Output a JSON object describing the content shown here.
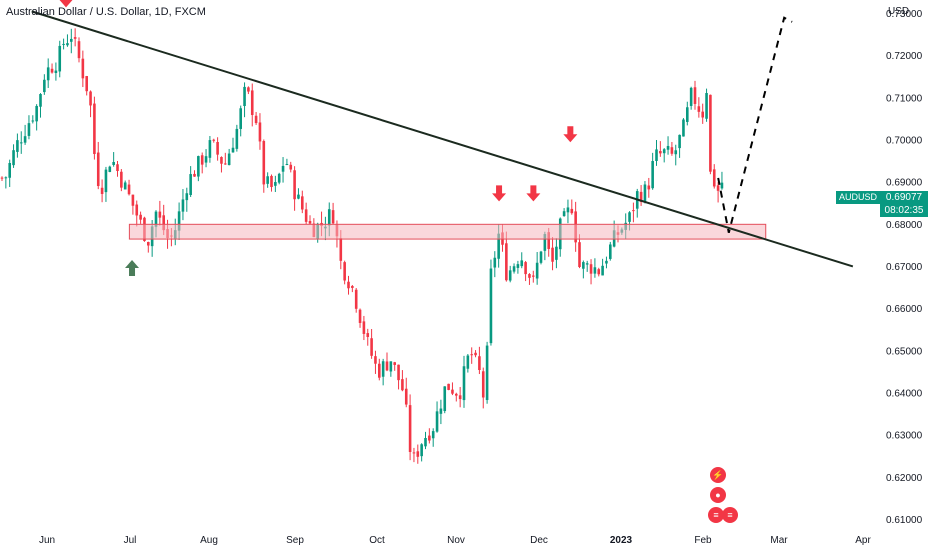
{
  "header": {
    "title": "Australian Dollar / U.S. Dollar, 1D, FXCM",
    "currency": "USD"
  },
  "price_tag": {
    "symbol": "AUDUSD",
    "price": "0.69077",
    "countdown": "08:02:35",
    "color": "#089981"
  },
  "colors": {
    "up": "#089981",
    "down": "#f23645",
    "trendline": "#1b2a1f",
    "zone_fill": "#f6b6bd",
    "zone_border": "#e44d5a",
    "arrow_red": "#f23645",
    "arrow_green": "#4a7c59"
  },
  "events": [
    {
      "icon": "lightning-icon",
      "color": "#f23645"
    },
    {
      "icon": "globe-icon",
      "color": "#f23645"
    },
    {
      "icon": "flag-icon",
      "color": "#f23645"
    },
    {
      "icon": "flag-icon",
      "color": "#f23645"
    }
  ],
  "chart_data": {
    "type": "candlestick",
    "title": "Australian Dollar / U.S. Dollar, 1D, FXCM",
    "y_axis": {
      "label": "USD",
      "ticks": [
        "0.73000",
        "0.72000",
        "0.71000",
        "0.70000",
        "0.69000",
        "0.68000",
        "0.67000",
        "0.66000",
        "0.65000",
        "0.64000",
        "0.63000",
        "0.62000",
        "0.61000"
      ],
      "range": [
        0.6075,
        0.7332
      ]
    },
    "x_axis": {
      "ticks": [
        "Jun",
        "Jul",
        "Aug",
        "Sep",
        "Oct",
        "Nov",
        "Dec",
        "2023",
        "Feb",
        "Mar",
        "Apr"
      ]
    },
    "close_path": [
      [
        "2022-05-12",
        0.691
      ],
      [
        "2022-05-16",
        0.6985
      ],
      [
        "2022-05-19",
        0.702
      ],
      [
        "2022-05-24",
        0.708
      ],
      [
        "2022-05-27",
        0.716
      ],
      [
        "2022-06-01",
        0.719
      ],
      [
        "2022-06-03",
        0.723
      ],
      [
        "2022-06-06",
        0.725
      ],
      [
        "2022-06-09",
        0.719
      ],
      [
        "2022-06-13",
        0.71
      ],
      [
        "2022-06-15",
        0.695
      ],
      [
        "2022-06-17",
        0.688
      ],
      [
        "2022-06-21",
        0.696
      ],
      [
        "2022-06-24",
        0.692
      ],
      [
        "2022-06-29",
        0.685
      ],
      [
        "2022-07-05",
        0.676
      ],
      [
        "2022-07-08",
        0.683
      ],
      [
        "2022-07-13",
        0.676
      ],
      [
        "2022-07-15",
        0.678
      ],
      [
        "2022-07-20",
        0.69
      ],
      [
        "2022-07-25",
        0.695
      ],
      [
        "2022-07-29",
        0.699
      ],
      [
        "2022-08-03",
        0.694
      ],
      [
        "2022-08-08",
        0.703
      ],
      [
        "2022-08-11",
        0.712
      ],
      [
        "2022-08-15",
        0.705
      ],
      [
        "2022-08-18",
        0.69
      ],
      [
        "2022-08-22",
        0.688
      ],
      [
        "2022-08-26",
        0.696
      ],
      [
        "2022-08-30",
        0.687
      ],
      [
        "2022-09-05",
        0.679
      ],
      [
        "2022-09-09",
        0.68
      ],
      [
        "2022-09-13",
        0.683
      ],
      [
        "2022-09-16",
        0.671
      ],
      [
        "2022-09-21",
        0.664
      ],
      [
        "2022-09-26",
        0.652
      ],
      [
        "2022-09-30",
        0.645
      ],
      [
        "2022-10-05",
        0.648
      ],
      [
        "2022-10-10",
        0.64
      ],
      [
        "2022-10-13",
        0.623
      ],
      [
        "2022-10-17",
        0.629
      ],
      [
        "2022-10-21",
        0.632
      ],
      [
        "2022-10-26",
        0.642
      ],
      [
        "2022-10-31",
        0.64
      ],
      [
        "2022-11-04",
        0.65
      ],
      [
        "2022-11-08",
        0.644
      ],
      [
        "2022-11-10",
        0.635
      ],
      [
        "2022-11-11",
        0.665
      ],
      [
        "2022-11-15",
        0.678
      ],
      [
        "2022-11-18",
        0.668
      ],
      [
        "2022-11-23",
        0.673
      ],
      [
        "2022-11-28",
        0.666
      ],
      [
        "2022-12-02",
        0.678
      ],
      [
        "2022-12-05",
        0.67
      ],
      [
        "2022-12-08",
        0.679
      ],
      [
        "2022-12-13",
        0.685
      ],
      [
        "2022-12-15",
        0.67
      ],
      [
        "2022-12-20",
        0.67
      ],
      [
        "2022-12-23",
        0.669
      ],
      [
        "2022-12-29",
        0.677
      ],
      [
        "2023-01-04",
        0.682
      ],
      [
        "2023-01-06",
        0.687
      ],
      [
        "2023-01-10",
        0.688
      ],
      [
        "2023-01-13",
        0.696
      ],
      [
        "2023-01-17",
        0.697
      ],
      [
        "2023-01-20",
        0.696
      ],
      [
        "2023-01-24",
        0.703
      ],
      [
        "2023-01-27",
        0.711
      ],
      [
        "2023-01-31",
        0.706
      ],
      [
        "2023-02-02",
        0.714
      ],
      [
        "2023-02-03",
        0.692
      ],
      [
        "2023-02-06",
        0.688
      ],
      [
        "2023-02-08",
        0.6908
      ]
    ],
    "projection": [
      [
        "2023-02-06",
        0.691
      ],
      [
        "2023-02-10",
        0.678
      ],
      [
        "2023-03-03",
        0.729
      ],
      [
        "2023-03-06",
        0.728
      ]
    ],
    "trendline": [
      [
        "2022-05-22",
        0.7305
      ],
      [
        "2023-03-29",
        0.67
      ]
    ],
    "support_zone": {
      "low": 0.6765,
      "high": 0.68,
      "from": "2022-06-28",
      "to": "2023-02-24"
    },
    "markers": [
      {
        "type": "down-arrow",
        "date": "2022-06-04",
        "price": 0.7305
      },
      {
        "type": "up-arrow",
        "date": "2022-06-29",
        "price": 0.672
      },
      {
        "type": "down-arrow",
        "date": "2022-11-15",
        "price": 0.6845
      },
      {
        "type": "down-arrow",
        "date": "2022-11-28",
        "price": 0.6845
      },
      {
        "type": "down-arrow",
        "date": "2022-12-12",
        "price": 0.6985
      }
    ]
  }
}
